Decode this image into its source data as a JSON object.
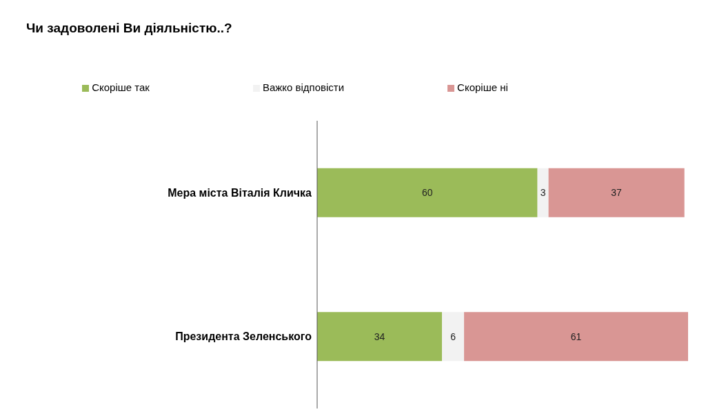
{
  "chart_data": {
    "type": "bar",
    "orientation": "horizontal",
    "stacked": true,
    "title": "Чи задоволені Ви діяльністю..?",
    "categories": [
      "Мера міста Віталія Кличка",
      "Президента Зеленського"
    ],
    "series": [
      {
        "name": "Скоріше так",
        "color": "#9bbb59",
        "values": [
          60,
          34
        ]
      },
      {
        "name": "Важко відповісти",
        "color": "#f2f2f2",
        "values": [
          3,
          6
        ]
      },
      {
        "name": "Скоріше ні",
        "color": "#d99694",
        "values": [
          37,
          61
        ]
      }
    ],
    "data_labels": true,
    "legend": "top"
  }
}
